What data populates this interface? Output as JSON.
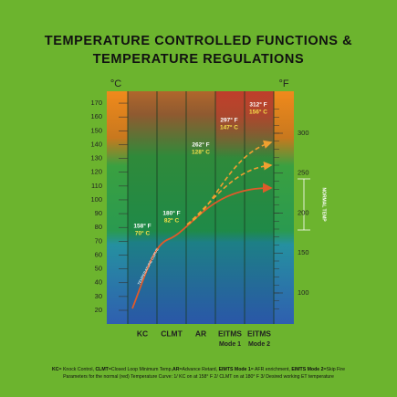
{
  "title": [
    "TEMPERATURE CONTROLLED FUNCTIONS &",
    "TEMPERATURE REGULATIONS"
  ],
  "celsius_unit": "°C",
  "fahrenheit_unit": "°F",
  "celsius_ticks": [
    20,
    30,
    40,
    50,
    60,
    70,
    80,
    90,
    100,
    110,
    120,
    130,
    140,
    150,
    160,
    170
  ],
  "fahrenheit_ticks": [
    100,
    150,
    200,
    250,
    300
  ],
  "columns": [
    {
      "label": [
        "KC"
      ]
    },
    {
      "label": [
        "CLMT"
      ]
    },
    {
      "label": [
        "AR"
      ]
    },
    {
      "label": [
        "EITMS",
        "Mode 1"
      ]
    },
    {
      "label": [
        "EITMS",
        "Mode 2"
      ]
    }
  ],
  "points": [
    {
      "f": "158° F",
      "c": "70° C"
    },
    {
      "f": "180° F",
      "c": "82° C"
    },
    {
      "f": "262° F",
      "c": "128° C"
    },
    {
      "f": "297° F",
      "c": "147° C"
    },
    {
      "f": "312° F",
      "c": "156° C"
    }
  ],
  "curve_label": "TEMPERATURE CURVE",
  "normal_temp": "NORMAL TEMP",
  "footnote": [
    [
      {
        "text": "KC",
        "bold": true
      },
      {
        "text": "= Knock Control, ",
        "bold": false
      },
      {
        "text": "CLMT",
        "bold": true
      },
      {
        "text": "=Closed Loop Minimum Temp,",
        "bold": false
      },
      {
        "text": "AR",
        "bold": true
      },
      {
        "text": "=Advance Retard, ",
        "bold": false
      },
      {
        "text": "EIMTS Mode 1",
        "bold": true
      },
      {
        "text": "= AFR enrichment, ",
        "bold": false
      },
      {
        "text": "EIMTS Mode 2",
        "bold": true
      },
      {
        "text": "=Skip Fire",
        "bold": false
      }
    ],
    [
      {
        "text": "Parameters for the normal (red) Temperature Curve: 1/ KC on at 158° F  2/ CLMT on at 180° F  3/ Desired working ET temperature",
        "bold": false
      }
    ]
  ]
}
